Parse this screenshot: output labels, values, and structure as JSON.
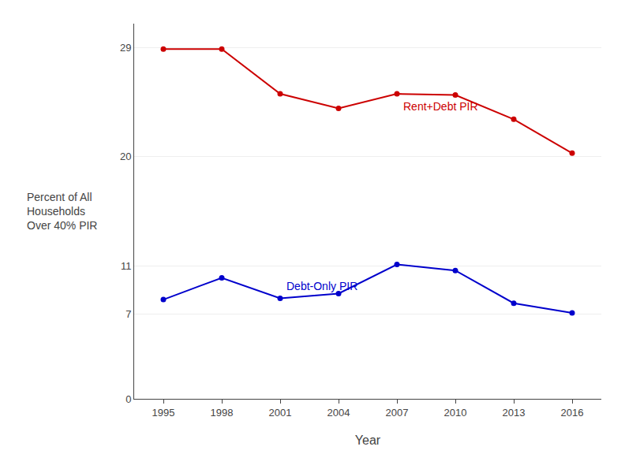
{
  "chart_data": {
    "type": "line",
    "x": [
      1995,
      1998,
      2001,
      2004,
      2007,
      2010,
      2013,
      2016
    ],
    "series": [
      {
        "name": "Rent+Debt PIR",
        "color": "#cc0000",
        "values": [
          28.9,
          28.9,
          25.2,
          24.0,
          25.2,
          25.1,
          23.1,
          20.3
        ]
      },
      {
        "name": "Debt-Only PIR",
        "color": "#0000cc",
        "values": [
          8.2,
          10.0,
          8.3,
          8.7,
          11.1,
          10.6,
          7.9,
          7.1
        ]
      }
    ],
    "x_label": "Year",
    "y_label": "Percent of All\nHouseholds\nOver 40% PIR",
    "xlim": [
      1993.5,
      2017.5
    ],
    "xticks": [
      1995,
      1998,
      2001,
      2004,
      2007,
      2010,
      2013,
      2016
    ],
    "ylim": [
      0,
      31
    ],
    "yticks": [
      0,
      7,
      11,
      20,
      29
    ],
    "grid": "y",
    "marker": "circle",
    "line_style": "solid"
  }
}
